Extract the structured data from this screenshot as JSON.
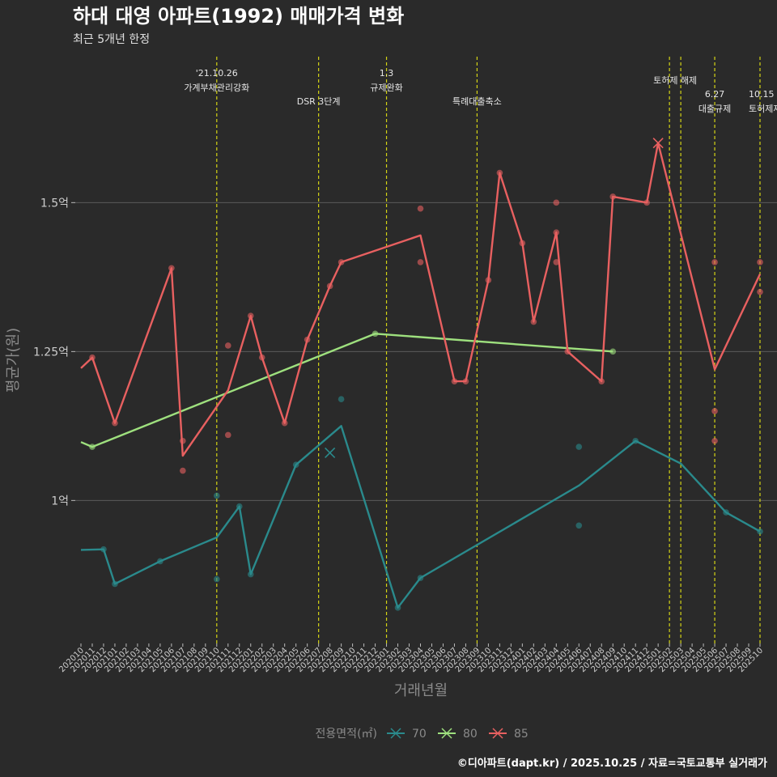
{
  "chart_data": {
    "type": "line",
    "title": "하대 대영 아파트(1992) 매매가격 변화",
    "subtitle": "최근 5개년 한정",
    "xlabel": "거래년월",
    "ylabel": "평균가(원)",
    "caption": "©디아파트(dapt.kr) / 2025.10.25 / 자료=국토교통부 실거래가",
    "legend_title": "전용면적(㎡)",
    "legend_position": "bottom",
    "grid": true,
    "ylim": [
      0.76,
      1.745
    ],
    "ytick_values": [
      1.0,
      1.25,
      1.5
    ],
    "ytick_labels": [
      "1억",
      "1.25억",
      "1.5억"
    ],
    "categories": [
      "202010",
      "202011",
      "202012",
      "202101",
      "202102",
      "202103",
      "202104",
      "202105",
      "202106",
      "202107",
      "202108",
      "202109",
      "202110",
      "202111",
      "202112",
      "202201",
      "202202",
      "202203",
      "202204",
      "202205",
      "202206",
      "202207",
      "202208",
      "202209",
      "202210",
      "202211",
      "202212",
      "202301",
      "202302",
      "202303",
      "202304",
      "202305",
      "202306",
      "202307",
      "202308",
      "202309",
      "202310",
      "202311",
      "202312",
      "202401",
      "202402",
      "202403",
      "202404",
      "202405",
      "202406",
      "202407",
      "202408",
      "202409",
      "202410",
      "202411",
      "202412",
      "202501",
      "202502",
      "202503",
      "202504",
      "202505",
      "202506",
      "202507",
      "202508",
      "202509",
      "202510"
    ],
    "events": [
      {
        "x": "202110",
        "label_line1": "'21.10.26",
        "label_line2": "가계부채관리강화",
        "row": 0
      },
      {
        "x": "202207",
        "label_line1": "",
        "label_line2": "DSR 3단계",
        "row": 1
      },
      {
        "x": "202301",
        "label_line1": "1.3",
        "label_line2": "규제완화",
        "row": 0
      },
      {
        "x": "202309",
        "label_line1": "",
        "label_line2": "특례대출축소",
        "row": 1
      },
      {
        "x": "202502",
        "label_line1": "",
        "label_line2": "토허제 해제",
        "row": 0
      },
      {
        "x": "202503",
        "label_line1": "",
        "label_line2": "",
        "row": 0
      },
      {
        "x": "202506",
        "label_line1": "6.27",
        "label_line2": "대출규제",
        "row": 1
      },
      {
        "x": "202510",
        "label_line1": "10.15",
        "label_line2": "토허제재지정",
        "row": 1
      }
    ],
    "series": [
      {
        "name": "70",
        "color": "#2a8a8c",
        "line": [
          [
            "202010",
            0.917
          ],
          [
            "202012",
            0.918
          ],
          [
            "202101",
            0.86
          ],
          [
            "202105",
            0.898
          ],
          [
            "202110",
            0.938
          ],
          [
            "202112",
            0.99
          ],
          [
            "202201",
            0.876
          ],
          [
            "202205",
            1.06
          ],
          [
            "202209",
            1.125
          ],
          [
            "202302",
            0.82
          ],
          [
            "202304",
            0.87
          ],
          [
            "202406",
            1.025
          ],
          [
            "202411",
            1.1
          ],
          [
            "202503",
            1.062
          ],
          [
            "202507",
            0.98
          ],
          [
            "202510",
            0.948
          ]
        ],
        "points": [
          [
            "202012",
            0.918
          ],
          [
            "202101",
            0.86
          ],
          [
            "202105",
            0.898
          ],
          [
            "202110",
            1.008
          ],
          [
            "202110",
            0.868
          ],
          [
            "202112",
            0.99
          ],
          [
            "202201",
            0.876
          ],
          [
            "202205",
            1.06
          ],
          [
            "202209",
            1.17
          ],
          [
            "202302",
            0.82
          ],
          [
            "202304",
            0.87
          ],
          [
            "202406",
            1.09
          ],
          [
            "202406",
            0.958
          ],
          [
            "202411",
            1.1
          ],
          [
            "202507",
            0.98
          ],
          [
            "202510",
            0.948
          ]
        ],
        "x_marks": [
          [
            "202208",
            1.08
          ]
        ]
      },
      {
        "name": "80",
        "color": "#9ee07e",
        "line": [
          [
            "202010",
            1.098
          ],
          [
            "202011",
            1.09
          ],
          [
            "202212",
            1.28
          ],
          [
            "202409",
            1.25
          ]
        ],
        "points": [
          [
            "202011",
            1.09
          ],
          [
            "202212",
            1.28
          ],
          [
            "202409",
            1.25
          ]
        ],
        "x_marks": []
      },
      {
        "name": "85",
        "color": "#e86060",
        "line": [
          [
            "202010",
            1.222
          ],
          [
            "202011",
            1.24
          ],
          [
            "202101",
            1.13
          ],
          [
            "202106",
            1.39
          ],
          [
            "202107",
            1.075
          ],
          [
            "202111",
            1.185
          ],
          [
            "202201",
            1.31
          ],
          [
            "202202",
            1.24
          ],
          [
            "202204",
            1.13
          ],
          [
            "202206",
            1.27
          ],
          [
            "202208",
            1.36
          ],
          [
            "202209",
            1.4
          ],
          [
            "202304",
            1.445
          ],
          [
            "202307",
            1.2
          ],
          [
            "202308",
            1.2
          ],
          [
            "202310",
            1.37
          ],
          [
            "202311",
            1.55
          ],
          [
            "202401",
            1.432
          ],
          [
            "202402",
            1.3
          ],
          [
            "202404",
            1.45
          ],
          [
            "202405",
            1.25
          ],
          [
            "202408",
            1.2
          ],
          [
            "202409",
            1.51
          ],
          [
            "202412",
            1.5
          ],
          [
            "202501",
            1.6
          ],
          [
            "202506",
            1.22
          ],
          [
            "202510",
            1.38
          ]
        ],
        "points": [
          [
            "202011",
            1.24
          ],
          [
            "202101",
            1.13
          ],
          [
            "202106",
            1.39
          ],
          [
            "202107",
            1.1
          ],
          [
            "202107",
            1.05
          ],
          [
            "202111",
            1.26
          ],
          [
            "202111",
            1.11
          ],
          [
            "202201",
            1.31
          ],
          [
            "202202",
            1.24
          ],
          [
            "202204",
            1.13
          ],
          [
            "202206",
            1.27
          ],
          [
            "202208",
            1.36
          ],
          [
            "202209",
            1.4
          ],
          [
            "202304",
            1.49
          ],
          [
            "202304",
            1.4
          ],
          [
            "202307",
            1.2
          ],
          [
            "202308",
            1.2
          ],
          [
            "202310",
            1.37
          ],
          [
            "202311",
            1.55
          ],
          [
            "202401",
            1.432
          ],
          [
            "202402",
            1.3
          ],
          [
            "202404",
            1.5
          ],
          [
            "202404",
            1.4
          ],
          [
            "202404",
            1.45
          ],
          [
            "202405",
            1.25
          ],
          [
            "202408",
            1.2
          ],
          [
            "202409",
            1.51
          ],
          [
            "202412",
            1.5
          ],
          [
            "202506",
            1.4
          ],
          [
            "202506",
            1.15
          ],
          [
            "202506",
            1.1
          ],
          [
            "202510",
            1.4
          ],
          [
            "202510",
            1.35
          ]
        ],
        "x_marks": [
          [
            "202501",
            1.6
          ]
        ]
      }
    ]
  }
}
